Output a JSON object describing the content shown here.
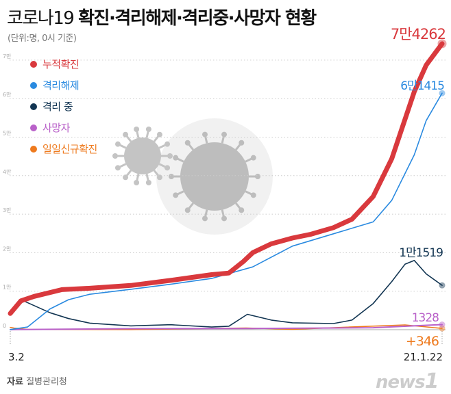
{
  "title_plain": "코로나19 ",
  "title_bold": "확진·격리해제·격리중·사망자 현황",
  "subtitle": "(단위:명, 0시 기준)",
  "source_label": "자료",
  "source_value": "질병관리청",
  "logo": "news1",
  "chart_data": {
    "type": "line",
    "title": "코로나19 확진·격리해제·격리중·사망자 현황",
    "ylabel": "명",
    "ylim": [
      0,
      75000
    ],
    "yticks": [
      0,
      10000,
      20000,
      30000,
      40000,
      50000,
      60000,
      70000
    ],
    "ytick_labels": [
      "0",
      "1만",
      "2만",
      "3만",
      "4만",
      "5만",
      "6만",
      "7만"
    ],
    "xlim": [
      "2020-03-02",
      "2021-01-22"
    ],
    "xtick_labels": [
      "3.2",
      "21.1.22"
    ],
    "grid": true,
    "legend_position": "top-left",
    "series": [
      {
        "name": "누적확진",
        "color": "#d9393d",
        "end_label": "7만4262",
        "points": [
          [
            "2020-03-02",
            4212
          ],
          [
            "2020-03-10",
            7500
          ],
          [
            "2020-03-20",
            8650
          ],
          [
            "2020-04-10",
            10400
          ],
          [
            "2020-05-01",
            10770
          ],
          [
            "2020-06-01",
            11500
          ],
          [
            "2020-07-01",
            12800
          ],
          [
            "2020-08-01",
            14300
          ],
          [
            "2020-08-14",
            14700
          ],
          [
            "2020-08-25",
            17700
          ],
          [
            "2020-09-01",
            20000
          ],
          [
            "2020-09-15",
            22300
          ],
          [
            "2020-10-01",
            23800
          ],
          [
            "2020-10-15",
            24800
          ],
          [
            "2020-11-01",
            26500
          ],
          [
            "2020-11-15",
            28700
          ],
          [
            "2020-12-01",
            34600
          ],
          [
            "2020-12-15",
            44400
          ],
          [
            "2021-01-01",
            61800
          ],
          [
            "2021-01-10",
            68700
          ],
          [
            "2021-01-22",
            74262
          ]
        ]
      },
      {
        "name": "격리해제",
        "color": "#2a8ae0",
        "end_label": "6만1415",
        "points": [
          [
            "2020-03-02",
            30
          ],
          [
            "2020-03-15",
            700
          ],
          [
            "2020-04-01",
            5400
          ],
          [
            "2020-04-15",
            7800
          ],
          [
            "2020-05-01",
            9200
          ],
          [
            "2020-06-01",
            10500
          ],
          [
            "2020-07-01",
            11800
          ],
          [
            "2020-08-01",
            13300
          ],
          [
            "2020-09-01",
            16300
          ],
          [
            "2020-10-01",
            21700
          ],
          [
            "2020-11-01",
            24900
          ],
          [
            "2020-12-01",
            28000
          ],
          [
            "2020-12-15",
            33600
          ],
          [
            "2021-01-01",
            45400
          ],
          [
            "2021-01-10",
            54300
          ],
          [
            "2021-01-22",
            61415
          ]
        ]
      },
      {
        "name": "격리 중",
        "color": "#123552",
        "end_label": "1만1519",
        "points": [
          [
            "2020-03-02",
            4000
          ],
          [
            "2020-03-12",
            7500
          ],
          [
            "2020-04-01",
            4400
          ],
          [
            "2020-04-15",
            2900
          ],
          [
            "2020-05-01",
            1700
          ],
          [
            "2020-06-01",
            1000
          ],
          [
            "2020-07-01",
            1300
          ],
          [
            "2020-08-01",
            700
          ],
          [
            "2020-08-14",
            900
          ],
          [
            "2020-08-28",
            4000
          ],
          [
            "2020-09-15",
            2500
          ],
          [
            "2020-10-01",
            1800
          ],
          [
            "2020-11-01",
            1600
          ],
          [
            "2020-11-15",
            2500
          ],
          [
            "2020-12-01",
            6800
          ],
          [
            "2020-12-15",
            12500
          ],
          [
            "2020-12-25",
            17000
          ],
          [
            "2021-01-01",
            18000
          ],
          [
            "2021-01-10",
            14500
          ],
          [
            "2021-01-22",
            11519
          ]
        ]
      },
      {
        "name": "사망자",
        "color": "#b961c9",
        "end_label": "1328",
        "points": [
          [
            "2020-03-02",
            22
          ],
          [
            "2020-06-01",
            270
          ],
          [
            "2020-09-01",
            320
          ],
          [
            "2020-12-01",
            520
          ],
          [
            "2021-01-22",
            1328
          ]
        ]
      },
      {
        "name": "일일신규확진",
        "color": "#ee7a1e",
        "end_label": "+346",
        "points": [
          [
            "2020-03-02",
            600
          ],
          [
            "2020-03-05",
            400
          ],
          [
            "2020-03-15",
            80
          ],
          [
            "2020-06-01",
            40
          ],
          [
            "2020-08-27",
            440
          ],
          [
            "2020-10-01",
            100
          ],
          [
            "2020-12-25",
            1240
          ],
          [
            "2021-01-22",
            346
          ]
        ]
      }
    ]
  }
}
